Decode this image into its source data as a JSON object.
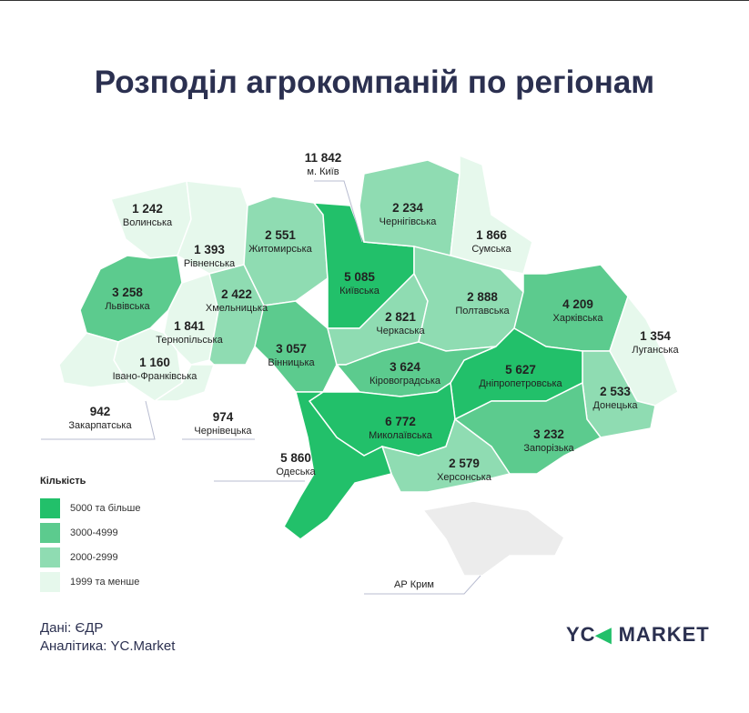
{
  "title": "Розподіл агрокомпаній по регіонам",
  "colors": {
    "c5000": "#22c06a",
    "c3000": "#5ccb8e",
    "c2000": "#8fdcb2",
    "c0": "#e6f8ec",
    "crimea": "#ececec"
  },
  "legend": {
    "title": "Кількість",
    "items": [
      {
        "label": "5000 та більше",
        "color": "#22c06a"
      },
      {
        "label": "3000-4999",
        "color": "#5ccb8e"
      },
      {
        "label": "2000-2999",
        "color": "#8fdcb2"
      },
      {
        "label": "1999 та менше",
        "color": "#e6f8ec"
      }
    ]
  },
  "regions": [
    {
      "name": "Волинська",
      "value": "1 242",
      "cls": "c0"
    },
    {
      "name": "Рівненська",
      "value": "1 393",
      "cls": "c0"
    },
    {
      "name": "Житомирська",
      "value": "2 551",
      "cls": "c2000"
    },
    {
      "name": "Київська",
      "value": "5 085",
      "cls": "c5000"
    },
    {
      "name": "Чернігівська",
      "value": "2 234",
      "cls": "c2000"
    },
    {
      "name": "Сумська",
      "value": "1 866",
      "cls": "c0"
    },
    {
      "name": "Львівська",
      "value": "3 258",
      "cls": "c3000"
    },
    {
      "name": "Тернопільська",
      "value": "1 841",
      "cls": "c0"
    },
    {
      "name": "Хмельницька",
      "value": "2 422",
      "cls": "c2000"
    },
    {
      "name": "Івано-Франківська",
      "value": "1 160",
      "cls": "c0"
    },
    {
      "name": "Закарпатська",
      "value": "942",
      "cls": "c0"
    },
    {
      "name": "Чернівецька",
      "value": "974",
      "cls": "c0"
    },
    {
      "name": "Вінницька",
      "value": "3 057",
      "cls": "c3000"
    },
    {
      "name": "Черкаська",
      "value": "2 821",
      "cls": "c2000"
    },
    {
      "name": "Полтавська",
      "value": "2 888",
      "cls": "c2000"
    },
    {
      "name": "Харківська",
      "value": "4 209",
      "cls": "c3000"
    },
    {
      "name": "Луганська",
      "value": "1 354",
      "cls": "c0"
    },
    {
      "name": "Донецька",
      "value": "2 533",
      "cls": "c2000"
    },
    {
      "name": "Дніпропетровська",
      "value": "5 627",
      "cls": "c5000"
    },
    {
      "name": "Кіровоградська",
      "value": "3 624",
      "cls": "c3000"
    },
    {
      "name": "Миколаївська",
      "value": "6 772",
      "cls": "c5000"
    },
    {
      "name": "Запорізька",
      "value": "3 232",
      "cls": "c3000"
    },
    {
      "name": "Херсонська",
      "value": "2 579",
      "cls": "c2000"
    },
    {
      "name": "Одеська",
      "value": "5 860",
      "cls": "c5000"
    },
    {
      "name": "АР Крим",
      "value": "",
      "cls": "crimea"
    },
    {
      "name": "м. Київ",
      "value": "11 842",
      "cls": ""
    }
  ],
  "source": "Дані: ЄДР",
  "analytics": "Аналітика: YC.Market",
  "logo": {
    "left": "YC",
    "right": "MARKET"
  }
}
